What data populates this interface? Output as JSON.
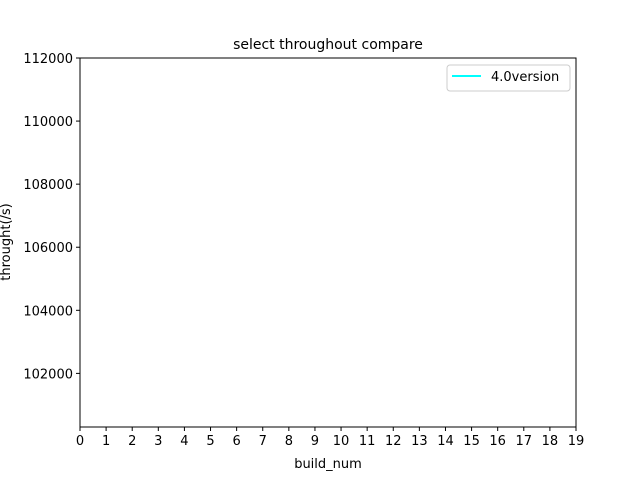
{
  "chart_data": {
    "type": "line",
    "title": "select throughout compare",
    "xlabel": "build_num",
    "ylabel": "throught(/s)",
    "xlim": [
      0,
      19
    ],
    "ylim": [
      100300,
      112000
    ],
    "x_ticks": [
      "0",
      "1",
      "2",
      "3",
      "4",
      "5",
      "6",
      "7",
      "8",
      "9",
      "10",
      "11",
      "12",
      "13",
      "14",
      "15",
      "16",
      "17",
      "18",
      "19"
    ],
    "y_ticks": [
      {
        "value": 102000,
        "label": "102000"
      },
      {
        "value": 104000,
        "label": "104000"
      },
      {
        "value": 106000,
        "label": "106000"
      },
      {
        "value": 108000,
        "label": "108000"
      },
      {
        "value": 110000,
        "label": "110000"
      },
      {
        "value": 112000,
        "label": "112000"
      }
    ],
    "grid": false,
    "legend": {
      "placement": "top-right"
    },
    "series": [
      {
        "name": "4.0version",
        "color": "#00ffff",
        "x": [],
        "y": []
      }
    ]
  }
}
